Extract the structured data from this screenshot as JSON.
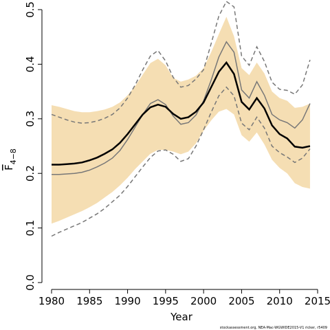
{
  "chart_data": {
    "type": "line",
    "xlabel": "Year",
    "ylabel": "F",
    "ylabel_sub": "4−8",
    "footnote": "stockassessment.org, NEA-Mac-WGWIDE2015-V1 ricker, r5409",
    "x": [
      1980,
      1981,
      1982,
      1983,
      1984,
      1985,
      1986,
      1987,
      1988,
      1989,
      1990,
      1991,
      1992,
      1993,
      1994,
      1995,
      1996,
      1997,
      1998,
      1999,
      2000,
      2001,
      2002,
      2003,
      2004,
      2005,
      2006,
      2007,
      2008,
      2009,
      2010,
      2011,
      2012,
      2013,
      2014
    ],
    "xlim": [
      1980,
      2015
    ],
    "xticks": [
      1980,
      1985,
      1990,
      1995,
      2000,
      2005,
      2010,
      2015
    ],
    "ylim": [
      0,
      0.5
    ],
    "yticks": [
      {
        "value": 0,
        "label": "0.0"
      },
      0.1,
      0.2,
      0.3,
      0.4,
      0.5
    ],
    "band": {
      "color": "#f5deb3",
      "lower": [
        0.108,
        0.113,
        0.119,
        0.125,
        0.131,
        0.138,
        0.146,
        0.156,
        0.166,
        0.178,
        0.192,
        0.208,
        0.222,
        0.236,
        0.243,
        0.243,
        0.24,
        0.235,
        0.24,
        0.255,
        0.278,
        0.297,
        0.313,
        0.318,
        0.308,
        0.27,
        0.258,
        0.275,
        0.253,
        0.225,
        0.21,
        0.2,
        0.182,
        0.175,
        0.172
      ],
      "upper": [
        0.325,
        0.322,
        0.318,
        0.314,
        0.312,
        0.312,
        0.314,
        0.317,
        0.322,
        0.33,
        0.343,
        0.36,
        0.381,
        0.402,
        0.41,
        0.398,
        0.375,
        0.368,
        0.372,
        0.379,
        0.393,
        0.422,
        0.455,
        0.487,
        0.451,
        0.393,
        0.38,
        0.403,
        0.383,
        0.35,
        0.338,
        0.333,
        0.32,
        0.322,
        0.328
      ]
    },
    "series": [
      {
        "color": "#777777",
        "dashed": true,
        "width": 1.5,
        "values": [
          0.308,
          0.303,
          0.298,
          0.294,
          0.292,
          0.293,
          0.296,
          0.301,
          0.308,
          0.32,
          0.338,
          0.362,
          0.39,
          0.415,
          0.425,
          0.406,
          0.376,
          0.358,
          0.361,
          0.373,
          0.39,
          0.438,
          0.488,
          0.515,
          0.505,
          0.415,
          0.398,
          0.432,
          0.405,
          0.367,
          0.354,
          0.352,
          0.345,
          0.362,
          0.408
        ]
      },
      {
        "color": "#777777",
        "dashed": true,
        "width": 1.5,
        "values": [
          0.085,
          0.092,
          0.098,
          0.104,
          0.11,
          0.118,
          0.126,
          0.136,
          0.148,
          0.16,
          0.176,
          0.194,
          0.212,
          0.229,
          0.241,
          0.243,
          0.235,
          0.222,
          0.227,
          0.25,
          0.28,
          0.312,
          0.342,
          0.358,
          0.342,
          0.292,
          0.28,
          0.303,
          0.283,
          0.25,
          0.238,
          0.23,
          0.22,
          0.228,
          0.245
        ]
      },
      {
        "color": "#777777",
        "dashed": false,
        "width": 1.5,
        "values": [
          0.198,
          0.198,
          0.199,
          0.2,
          0.202,
          0.206,
          0.212,
          0.219,
          0.228,
          0.242,
          0.262,
          0.285,
          0.308,
          0.328,
          0.335,
          0.326,
          0.305,
          0.29,
          0.293,
          0.307,
          0.333,
          0.371,
          0.413,
          0.441,
          0.422,
          0.353,
          0.338,
          0.368,
          0.343,
          0.308,
          0.298,
          0.293,
          0.283,
          0.298,
          0.328
        ]
      },
      {
        "color": "#000000",
        "dashed": false,
        "width": 2.5,
        "values": [
          0.216,
          0.216,
          0.217,
          0.218,
          0.22,
          0.224,
          0.229,
          0.236,
          0.244,
          0.256,
          0.272,
          0.29,
          0.308,
          0.321,
          0.326,
          0.322,
          0.309,
          0.3,
          0.303,
          0.313,
          0.33,
          0.358,
          0.386,
          0.403,
          0.382,
          0.331,
          0.317,
          0.338,
          0.319,
          0.288,
          0.272,
          0.264,
          0.249,
          0.247,
          0.25
        ]
      }
    ]
  }
}
